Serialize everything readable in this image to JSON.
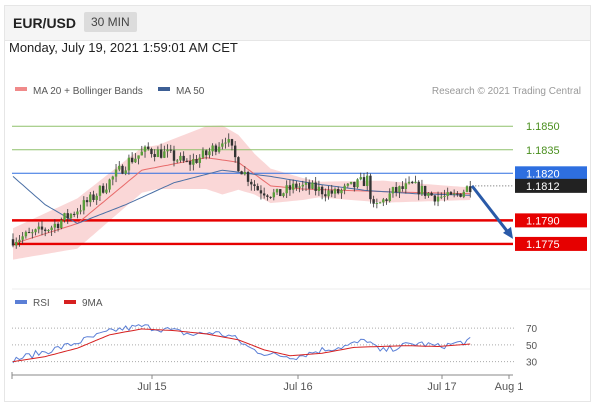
{
  "header": {
    "symbol": "EUR/USD",
    "timeframe": "30 MIN"
  },
  "datetime": "Monday, July 19, 2021 1:59:01 AM CET",
  "legend": {
    "ma20_label": "MA 20 + Bollinger Bands",
    "ma50_label": "MA 50",
    "copyright": "Research © 2021 Trading Central",
    "rsi_label": "RSI",
    "rsi_ma_label": "9MA"
  },
  "colors": {
    "bollinger": "#f8c9c9",
    "ma20": "#e86b6b",
    "ma50": "#4a6fa5",
    "resistance_green": "#8fc16b",
    "level_blue": "#2e6fe0",
    "support_red": "#e60000",
    "forecast_arrow": "#2a5aa8",
    "candle_up": "#5a9e3a",
    "candle_down": "#333333",
    "rsi_line": "#5b7fd6",
    "rsi_ma": "#d62020"
  },
  "chart_data": {
    "type": "candlestick",
    "title": "EUR/USD",
    "timeframe": "30 MIN",
    "ylim": [
      1.1752,
      1.1868
    ],
    "xlim": [
      "Jul 14 18:00",
      "Aug 1"
    ],
    "x_ticks": [
      "Jul 15",
      "Jul 16",
      "Jul 17",
      "Aug 1"
    ],
    "levels": [
      {
        "value": 1.185,
        "label": "1.1850",
        "type": "resistance"
      },
      {
        "value": 1.1835,
        "label": "1.1835",
        "type": "resistance"
      },
      {
        "value": 1.182,
        "label": "1.1820",
        "type": "pivot"
      },
      {
        "value": 1.179,
        "label": "1.1790",
        "type": "support"
      },
      {
        "value": 1.1775,
        "label": "1.1775",
        "type": "support"
      }
    ],
    "last_price": {
      "value": 1.1812,
      "label": "1.1812"
    },
    "forecast": {
      "from": 1.1812,
      "to": 1.1775,
      "direction": "down"
    },
    "close_anchors": [
      [
        0,
        1.1778
      ],
      [
        6,
        1.1781
      ],
      [
        12,
        1.1786
      ],
      [
        18,
        1.1794
      ],
      [
        24,
        1.1803
      ],
      [
        30,
        1.1815
      ],
      [
        36,
        1.1828
      ],
      [
        42,
        1.1835
      ],
      [
        48,
        1.1832
      ],
      [
        54,
        1.1826
      ],
      [
        60,
        1.1832
      ],
      [
        66,
        1.1843
      ],
      [
        70,
        1.1825
      ],
      [
        76,
        1.181
      ],
      [
        82,
        1.1806
      ],
      [
        88,
        1.1812
      ],
      [
        94,
        1.181
      ],
      [
        100,
        1.1807
      ],
      [
        106,
        1.1812
      ],
      [
        110,
        1.1816
      ],
      [
        112,
        1.1797
      ],
      [
        118,
        1.1808
      ],
      [
        124,
        1.1812
      ],
      [
        130,
        1.1806
      ],
      [
        136,
        1.1804
      ],
      [
        142,
        1.1812
      ]
    ],
    "series": [
      {
        "name": "MA 20",
        "points": [
          [
            0,
            1.1775
          ],
          [
            20,
            1.1788
          ],
          [
            40,
            1.1822
          ],
          [
            60,
            1.183
          ],
          [
            70,
            1.1827
          ],
          [
            80,
            1.1812
          ],
          [
            90,
            1.181
          ],
          [
            105,
            1.1809
          ],
          [
            120,
            1.1808
          ],
          [
            142,
            1.1807
          ]
        ]
      },
      {
        "name": "MA 50",
        "points": [
          [
            0,
            1.1818
          ],
          [
            10,
            1.18
          ],
          [
            20,
            1.1788
          ],
          [
            35,
            1.18
          ],
          [
            50,
            1.1814
          ],
          [
            65,
            1.1822
          ],
          [
            80,
            1.1818
          ],
          [
            95,
            1.1813
          ],
          [
            110,
            1.1809
          ],
          [
            125,
            1.1807
          ],
          [
            142,
            1.1806
          ]
        ]
      }
    ],
    "bollinger_half_width": [
      [
        0,
        0.001
      ],
      [
        20,
        0.0016
      ],
      [
        45,
        0.0014
      ],
      [
        65,
        0.0022
      ],
      [
        75,
        0.0013
      ],
      [
        95,
        0.0005
      ],
      [
        115,
        0.0007
      ],
      [
        142,
        0.0004
      ]
    ],
    "rsi": {
      "ticks": [
        70,
        50,
        30
      ],
      "ylim": [
        20,
        82
      ],
      "rsi_anchors": [
        [
          0,
          32
        ],
        [
          8,
          40
        ],
        [
          16,
          48
        ],
        [
          24,
          58
        ],
        [
          32,
          68
        ],
        [
          40,
          72
        ],
        [
          48,
          68
        ],
        [
          56,
          62
        ],
        [
          62,
          65
        ],
        [
          68,
          60
        ],
        [
          74,
          45
        ],
        [
          80,
          38
        ],
        [
          88,
          36
        ],
        [
          96,
          44
        ],
        [
          104,
          49
        ],
        [
          110,
          56
        ],
        [
          114,
          42
        ],
        [
          120,
          48
        ],
        [
          126,
          52
        ],
        [
          132,
          48
        ],
        [
          138,
          52
        ],
        [
          142,
          55
        ]
      ],
      "ma_anchors": [
        [
          0,
          30
        ],
        [
          10,
          36
        ],
        [
          20,
          46
        ],
        [
          30,
          62
        ],
        [
          40,
          69
        ],
        [
          50,
          67
        ],
        [
          60,
          63
        ],
        [
          70,
          56
        ],
        [
          78,
          44
        ],
        [
          86,
          37
        ],
        [
          96,
          40
        ],
        [
          106,
          47
        ],
        [
          114,
          48
        ],
        [
          122,
          49
        ],
        [
          132,
          48
        ],
        [
          142,
          51
        ]
      ]
    }
  }
}
